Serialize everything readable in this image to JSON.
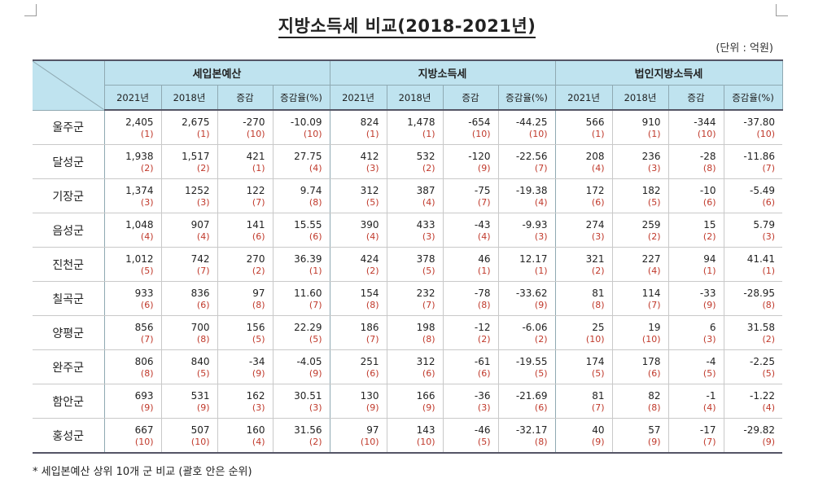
{
  "title": "지방소득세 비교(2018-2021년)",
  "unit": "(단위 : 억원)",
  "groups": [
    "세입본예산",
    "지방소득세",
    "법인지방소득세"
  ],
  "subheaders": [
    "2021년",
    "2018년",
    "증감",
    "증감율(%)"
  ],
  "rows": [
    {
      "name": "울주군",
      "cells": [
        [
          "2,405",
          "(1)"
        ],
        [
          "2,675",
          "(1)"
        ],
        [
          "-270",
          "(10)"
        ],
        [
          "-10.09",
          "(10)"
        ],
        [
          "824",
          "(1)"
        ],
        [
          "1,478",
          "(1)"
        ],
        [
          "-654",
          "(10)"
        ],
        [
          "-44.25",
          "(10)"
        ],
        [
          "566",
          "(1)"
        ],
        [
          "910",
          "(1)"
        ],
        [
          "-344",
          "(10)"
        ],
        [
          "-37.80",
          "(10)"
        ]
      ]
    },
    {
      "name": "달성군",
      "cells": [
        [
          "1,938",
          "(2)"
        ],
        [
          "1,517",
          "(2)"
        ],
        [
          "421",
          "(1)"
        ],
        [
          "27.75",
          "(4)"
        ],
        [
          "412",
          "(3)"
        ],
        [
          "532",
          "(2)"
        ],
        [
          "-120",
          "(9)"
        ],
        [
          "-22.56",
          "(7)"
        ],
        [
          "208",
          "(4)"
        ],
        [
          "236",
          "(3)"
        ],
        [
          "-28",
          "(8)"
        ],
        [
          "-11.86",
          "(7)"
        ]
      ]
    },
    {
      "name": "기장군",
      "cells": [
        [
          "1,374",
          "(3)"
        ],
        [
          "1252",
          "(3)"
        ],
        [
          "122",
          "(7)"
        ],
        [
          "9.74",
          "(8)"
        ],
        [
          "312",
          "(5)"
        ],
        [
          "387",
          "(4)"
        ],
        [
          "-75",
          "(7)"
        ],
        [
          "-19.38",
          "(4)"
        ],
        [
          "172",
          "(6)"
        ],
        [
          "182",
          "(5)"
        ],
        [
          "-10",
          "(6)"
        ],
        [
          "-5.49",
          "(6)"
        ]
      ]
    },
    {
      "name": "음성군",
      "cells": [
        [
          "1,048",
          "(4)"
        ],
        [
          "907",
          "(4)"
        ],
        [
          "141",
          "(6)"
        ],
        [
          "15.55",
          "(6)"
        ],
        [
          "390",
          "(4)"
        ],
        [
          "433",
          "(3)"
        ],
        [
          "-43",
          "(4)"
        ],
        [
          "-9.93",
          "(3)"
        ],
        [
          "274",
          "(3)"
        ],
        [
          "259",
          "(2)"
        ],
        [
          "15",
          "(2)"
        ],
        [
          "5.79",
          "(3)"
        ]
      ]
    },
    {
      "name": "진천군",
      "cells": [
        [
          "1,012",
          "(5)"
        ],
        [
          "742",
          "(7)"
        ],
        [
          "270",
          "(2)"
        ],
        [
          "36.39",
          "(1)"
        ],
        [
          "424",
          "(2)"
        ],
        [
          "378",
          "(5)"
        ],
        [
          "46",
          "(1)"
        ],
        [
          "12.17",
          "(1)"
        ],
        [
          "321",
          "(2)"
        ],
        [
          "227",
          "(4)"
        ],
        [
          "94",
          "(1)"
        ],
        [
          "41.41",
          "(1)"
        ]
      ]
    },
    {
      "name": "칠곡군",
      "cells": [
        [
          "933",
          "(6)"
        ],
        [
          "836",
          "(6)"
        ],
        [
          "97",
          "(8)"
        ],
        [
          "11.60",
          "(7)"
        ],
        [
          "154",
          "(8)"
        ],
        [
          "232",
          "(7)"
        ],
        [
          "-78",
          "(8)"
        ],
        [
          "-33.62",
          "(9)"
        ],
        [
          "81",
          "(8)"
        ],
        [
          "114",
          "(7)"
        ],
        [
          "-33",
          "(9)"
        ],
        [
          "-28.95",
          "(8)"
        ]
      ]
    },
    {
      "name": "양평군",
      "cells": [
        [
          "856",
          "(7)"
        ],
        [
          "700",
          "(8)"
        ],
        [
          "156",
          "(5)"
        ],
        [
          "22.29",
          "(5)"
        ],
        [
          "186",
          "(7)"
        ],
        [
          "198",
          "(8)"
        ],
        [
          "-12",
          "(2)"
        ],
        [
          "-6.06",
          "(2)"
        ],
        [
          "25",
          "(10)"
        ],
        [
          "19",
          "(10)"
        ],
        [
          "6",
          "(3)"
        ],
        [
          "31.58",
          "(2)"
        ]
      ]
    },
    {
      "name": "완주군",
      "cells": [
        [
          "806",
          "(8)"
        ],
        [
          "840",
          "(5)"
        ],
        [
          "-34",
          "(9)"
        ],
        [
          "-4.05",
          "(9)"
        ],
        [
          "251",
          "(6)"
        ],
        [
          "312",
          "(6)"
        ],
        [
          "-61",
          "(6)"
        ],
        [
          "-19.55",
          "(5)"
        ],
        [
          "174",
          "(5)"
        ],
        [
          "178",
          "(6)"
        ],
        [
          "-4",
          "(5)"
        ],
        [
          "-2.25",
          "(5)"
        ]
      ]
    },
    {
      "name": "함안군",
      "cells": [
        [
          "693",
          "(9)"
        ],
        [
          "531",
          "(9)"
        ],
        [
          "162",
          "(3)"
        ],
        [
          "30.51",
          "(3)"
        ],
        [
          "130",
          "(9)"
        ],
        [
          "166",
          "(9)"
        ],
        [
          "-36",
          "(3)"
        ],
        [
          "-21.69",
          "(6)"
        ],
        [
          "81",
          "(7)"
        ],
        [
          "82",
          "(8)"
        ],
        [
          "-1",
          "(4)"
        ],
        [
          "-1.22",
          "(4)"
        ]
      ]
    },
    {
      "name": "홍성군",
      "cells": [
        [
          "667",
          "(10)"
        ],
        [
          "507",
          "(10)"
        ],
        [
          "160",
          "(4)"
        ],
        [
          "31.56",
          "(2)"
        ],
        [
          "97",
          "(10)"
        ],
        [
          "143",
          "(10)"
        ],
        [
          "-46",
          "(5)"
        ],
        [
          "-32.17",
          "(8)"
        ],
        [
          "40",
          "(9)"
        ],
        [
          "57",
          "(9)"
        ],
        [
          "-17",
          "(7)"
        ],
        [
          "-29.82",
          "(9)"
        ]
      ]
    }
  ],
  "footnote": "*  세입본예산 상위 10개 군 비교 (괄호 안은 순위)"
}
